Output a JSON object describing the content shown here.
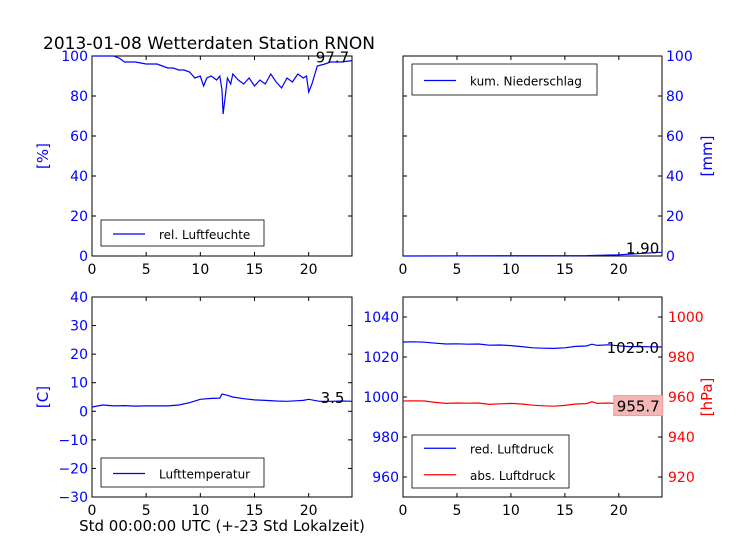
{
  "title": "2013-01-08 Wetterdaten Station RNON",
  "xlabel": "Std 00:00:00 UTC (+-23 Std Lokalzeit)",
  "colors": {
    "blue": "#0000ff",
    "red": "#ff0000",
    "black": "#000000",
    "red_box": "#f4b6b6"
  },
  "chart_data": [
    {
      "type": "line",
      "id": "humidity",
      "ylabel": "[%]",
      "ylabel_color": "#0000ff",
      "xlim": [
        0,
        24
      ],
      "ylim": [
        0,
        100
      ],
      "xticks": [
        0,
        5,
        10,
        15,
        20
      ],
      "yticks": [
        0,
        20,
        40,
        60,
        80,
        100
      ],
      "tick_color": "#0000ff",
      "legend": {
        "position": "lower-left",
        "entries": [
          "rel. Luftfeuchte"
        ]
      },
      "series": [
        {
          "name": "rel. Luftfeuchte",
          "color": "#0000ff",
          "x": [
            0,
            1,
            2,
            2.5,
            3,
            4,
            5,
            6,
            6.5,
            7,
            7.5,
            8,
            8.5,
            9,
            9.5,
            10,
            10.3,
            10.6,
            11,
            11.5,
            11.8,
            12,
            12.1,
            12.3,
            12.5,
            12.8,
            13,
            13.5,
            14,
            14.5,
            15,
            15.5,
            16,
            16.5,
            17,
            17.5,
            18,
            18.5,
            19,
            19.5,
            19.8,
            20,
            20.3,
            20.8,
            21.5,
            22,
            23,
            24
          ],
          "y": [
            100,
            100,
            100,
            99,
            97,
            97,
            96,
            96,
            95,
            94,
            94,
            93,
            93,
            92,
            89,
            90,
            85,
            89,
            90,
            88,
            90,
            83,
            71,
            80,
            89,
            86,
            91,
            88,
            86,
            89,
            85,
            88,
            86,
            91,
            87,
            84,
            89,
            87,
            91,
            89,
            90,
            82,
            86,
            95,
            96,
            97,
            97,
            97.7
          ]
        }
      ],
      "annotation": {
        "text": "97.7",
        "x": 22.2,
        "y": 99.8,
        "boxed": false
      }
    },
    {
      "type": "line",
      "id": "precipitation",
      "ylabel": "[mm]",
      "ylabel_color": "#0000ff",
      "ylabel_side": "right",
      "xlim": [
        0,
        24
      ],
      "ylim": [
        0,
        100
      ],
      "xticks": [
        0,
        5,
        10,
        15,
        20
      ],
      "yticks": [
        0,
        20,
        40,
        60,
        80,
        100
      ],
      "tick_color": "#0000ff",
      "legend": {
        "position": "upper-left",
        "entries": [
          "kum. Niederschlag"
        ]
      },
      "series": [
        {
          "name": "kum. Niederschlag",
          "color": "#0000ff",
          "x": [
            0,
            17,
            20,
            24
          ],
          "y": [
            0,
            0.2,
            0.6,
            1.9
          ]
        }
      ],
      "annotation": {
        "text": "1.90",
        "x": 22.2,
        "y": 4.2,
        "boxed": false
      }
    },
    {
      "type": "line",
      "id": "temperature",
      "ylabel": "[C]",
      "ylabel_color": "#0000ff",
      "xlim": [
        0,
        24
      ],
      "ylim": [
        -30,
        40
      ],
      "xticks": [
        0,
        5,
        10,
        15,
        20
      ],
      "yticks": [
        -30,
        -20,
        -10,
        0,
        10,
        20,
        30,
        40
      ],
      "tick_labels": [
        "−30",
        "−20",
        "−10",
        "0",
        "10",
        "20",
        "30",
        "40"
      ],
      "tick_color": "#0000ff",
      "legend": {
        "position": "lower-left",
        "entries": [
          "Lufttemperatur"
        ]
      },
      "series": [
        {
          "name": "Lufttemperatur",
          "color": "#0000ff",
          "x": [
            0,
            1,
            2,
            3,
            4,
            5,
            6,
            7,
            8,
            9,
            10,
            11,
            11.8,
            12,
            12.5,
            13,
            14,
            15,
            16,
            17,
            18,
            19,
            19.5,
            20,
            21,
            22,
            23,
            24
          ],
          "y": [
            1.5,
            2.2,
            1.9,
            2.0,
            1.8,
            1.9,
            1.9,
            1.9,
            2.2,
            3.0,
            4.2,
            4.5,
            4.6,
            6.0,
            5.6,
            5.0,
            4.4,
            4.0,
            3.8,
            3.6,
            3.5,
            3.7,
            3.8,
            4.2,
            3.5,
            3.5,
            3.6,
            3.5
          ]
        }
      ],
      "annotation": {
        "text": "3.5",
        "x": 22.2,
        "y": 5.0,
        "boxed": false
      }
    },
    {
      "type": "line",
      "id": "pressure",
      "ylabel": "[hPa]",
      "ylabel_color": "#ff0000",
      "ylabel_side": "right",
      "xlim": [
        0,
        24
      ],
      "ylim": [
        950,
        1050
      ],
      "yticks": [
        960,
        980,
        1000,
        1020,
        1040
      ],
      "tick_color": "#0000ff",
      "y2lim": [
        910,
        1010
      ],
      "y2ticks": [
        920,
        940,
        960,
        980,
        1000
      ],
      "y2tick_color": "#ff0000",
      "xticks": [
        0,
        5,
        10,
        15,
        20
      ],
      "legend": {
        "position": "lower-left",
        "entries": [
          "red. Luftdruck",
          "abs. Luftdruck"
        ]
      },
      "series": [
        {
          "name": "red. Luftdruck",
          "color": "#0000ff",
          "axis": "left",
          "x": [
            0,
            1,
            2,
            3,
            4,
            5,
            6,
            7,
            8,
            9,
            10,
            11,
            12,
            13,
            14,
            15,
            16,
            17,
            17.5,
            18,
            19,
            20,
            21,
            22,
            23,
            24
          ],
          "y": [
            1027.5,
            1027.6,
            1027.4,
            1026.9,
            1026.5,
            1026.6,
            1026.4,
            1026.5,
            1025.9,
            1026.0,
            1025.7,
            1025.2,
            1024.6,
            1024.4,
            1024.3,
            1024.6,
            1025.3,
            1025.5,
            1026.4,
            1025.8,
            1026.1,
            1025.6,
            1025.2,
            1025.2,
            1025.1,
            1025.0
          ]
        },
        {
          "name": "abs. Luftdruck",
          "color": "#ff0000",
          "axis": "right",
          "x": [
            0,
            1,
            2,
            3,
            4,
            5,
            6,
            7,
            8,
            9,
            10,
            11,
            12,
            13,
            14,
            15,
            16,
            17,
            17.5,
            18,
            19,
            20,
            21,
            22,
            23,
            24
          ],
          "y": [
            958.0,
            958.1,
            958.0,
            957.3,
            956.8,
            957.0,
            956.9,
            957.0,
            956.3,
            956.6,
            956.8,
            956.5,
            955.9,
            955.6,
            955.4,
            955.8,
            956.5,
            956.7,
            957.6,
            956.8,
            957.0,
            956.6,
            956.2,
            955.9,
            955.8,
            955.7
          ]
        }
      ],
      "annotations": [
        {
          "text": "1025.0",
          "x": 21.3,
          "y": 1025.0,
          "axis": "left",
          "boxed": false
        },
        {
          "text": "955.7",
          "x": 21.8,
          "y": 955.7,
          "axis": "right",
          "boxed": true,
          "box_color": "#f4b6b6"
        }
      ]
    }
  ]
}
